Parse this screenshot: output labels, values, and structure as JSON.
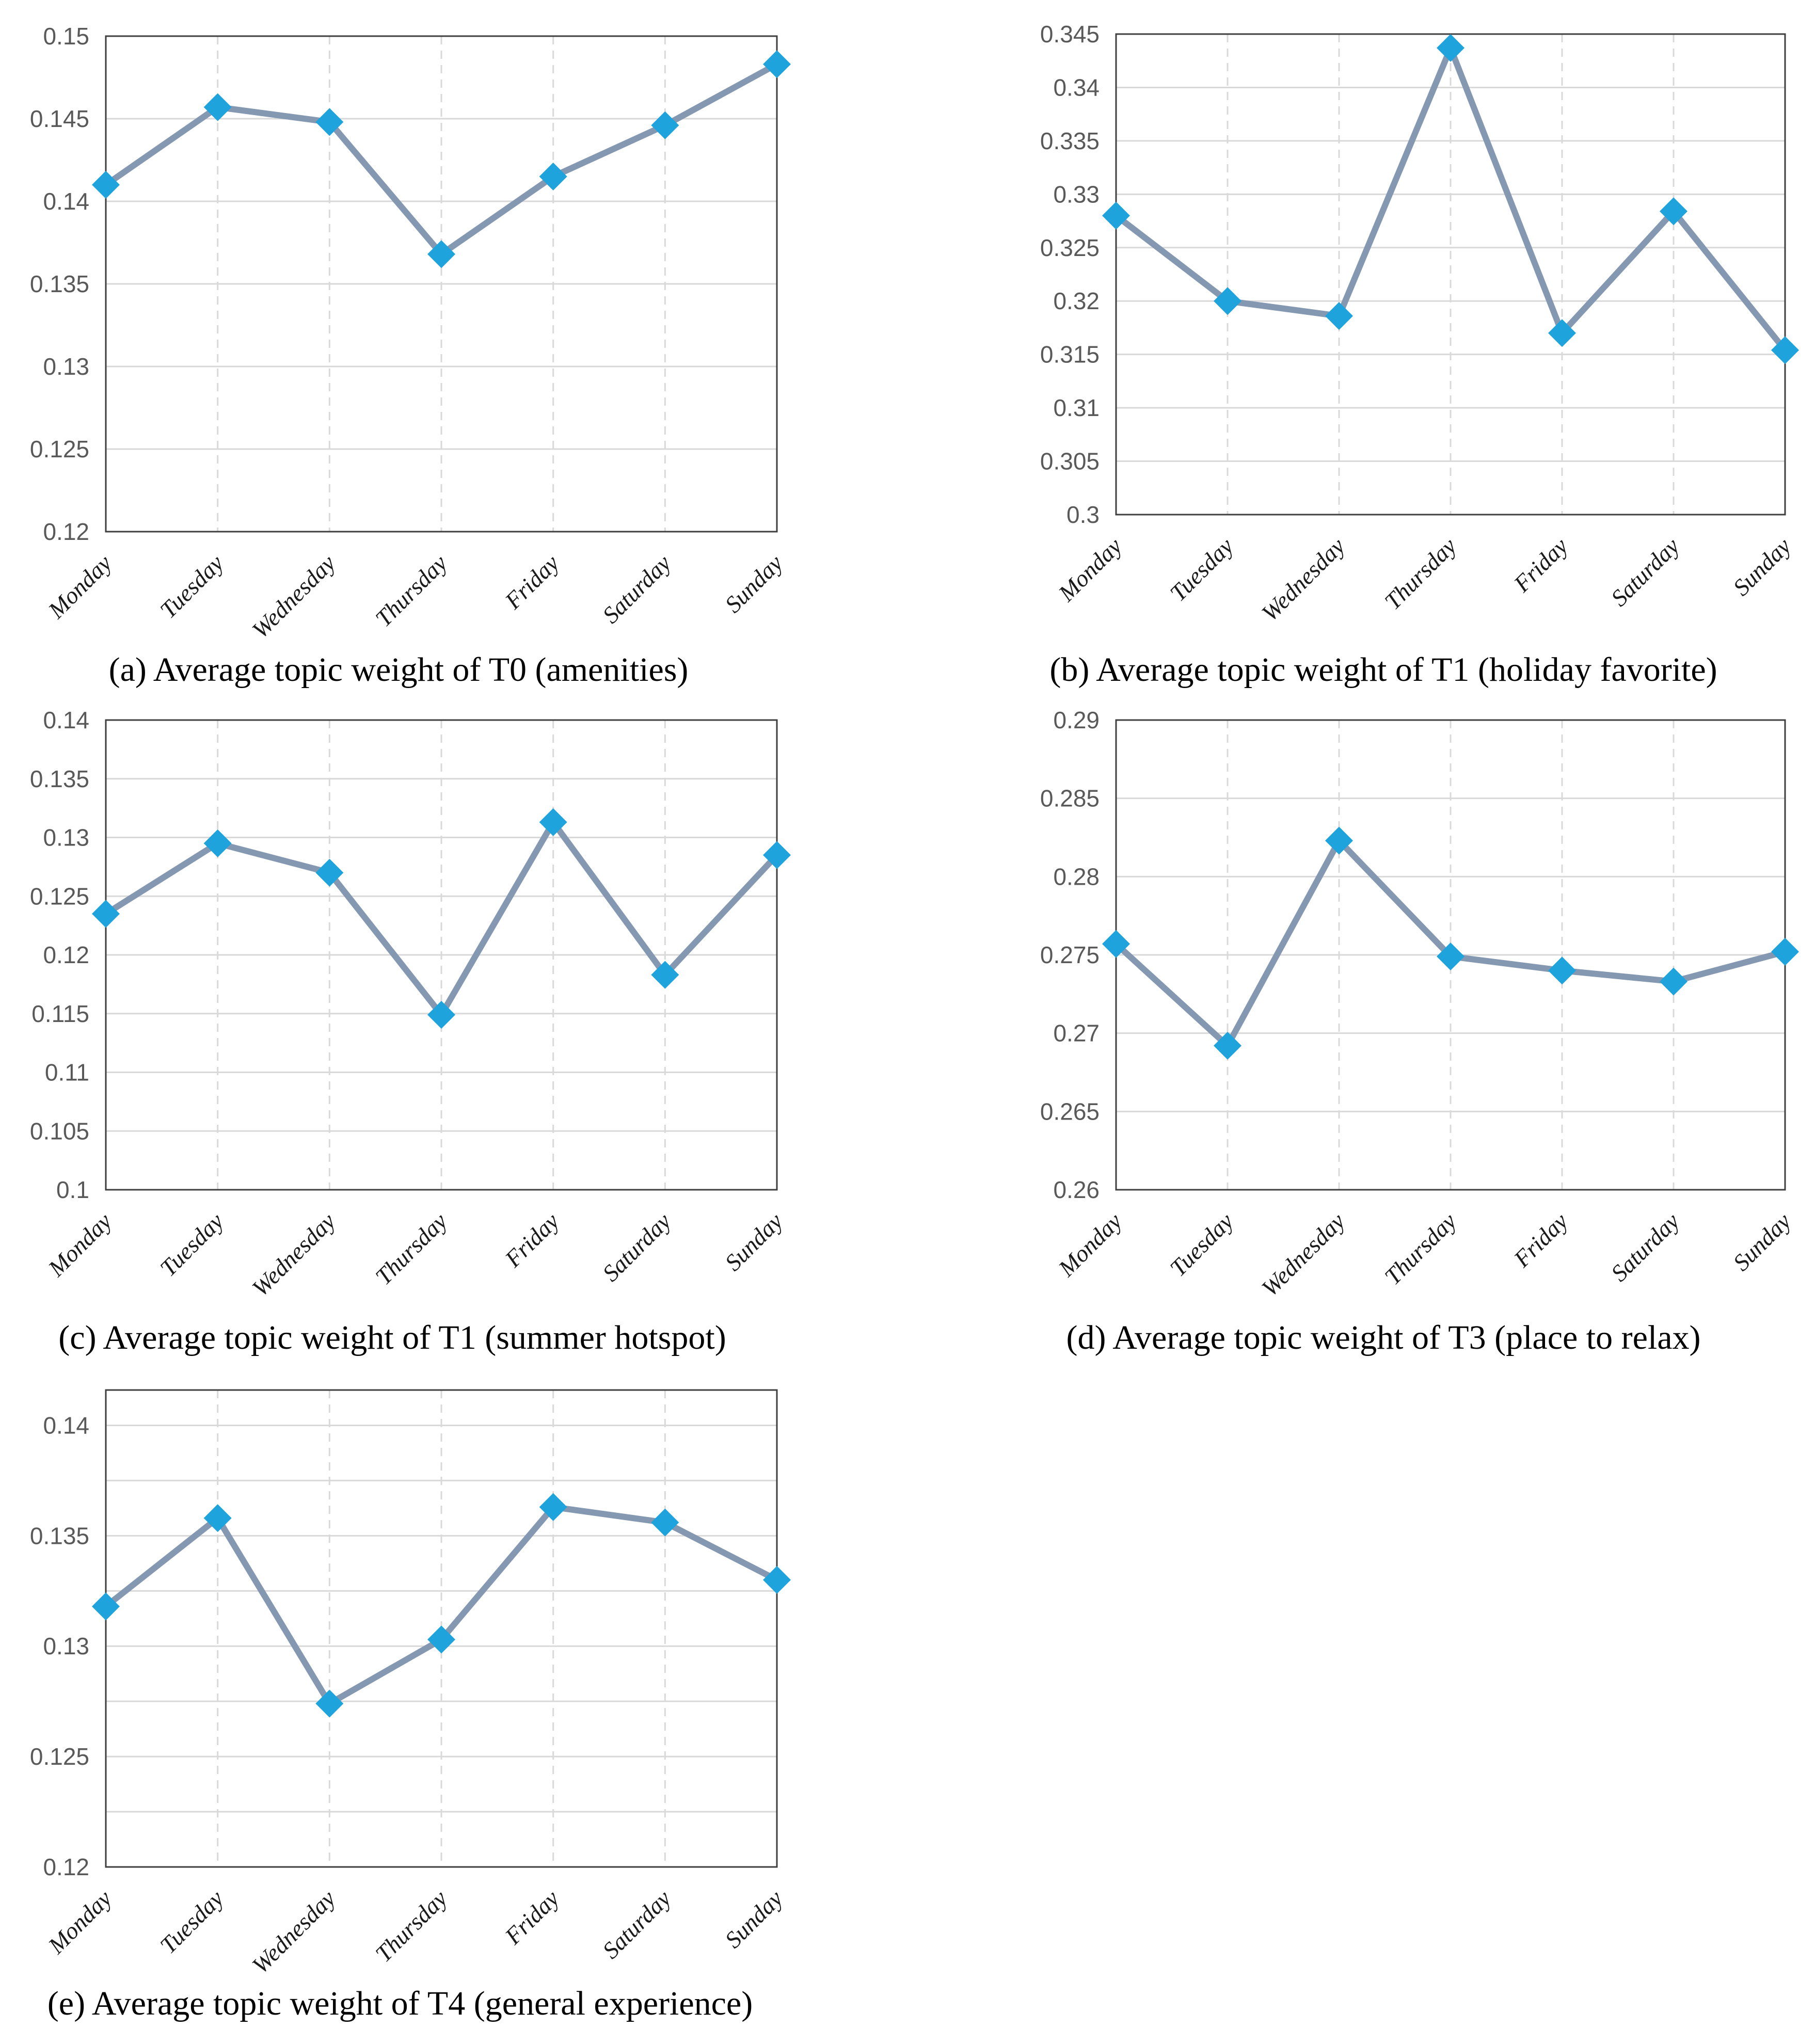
{
  "figure": {
    "background": "#ffffff",
    "caption_color": "#000000",
    "ytick_label_color": "#595959",
    "day_label_color": "#1a1a1a",
    "line_color": "#8598b1",
    "marker_color": "#1fa3dd",
    "gridline_color": "#d9d9d9",
    "dashed_gridline_color": "#d9d9d9",
    "plot_border_color": "#3f3f3f"
  },
  "categories": [
    "Monday",
    "Tuesday",
    "Wednesday",
    "Thursday",
    "Friday",
    "Saturday",
    "Sunday"
  ],
  "chart_data": [
    {
      "type": "line",
      "id": "a",
      "caption": "(a) Average topic weight of T0 (amenities)",
      "topic": "T0 (amenities)",
      "categories": [
        "Monday",
        "Tuesday",
        "Wednesday",
        "Thursday",
        "Friday",
        "Saturday",
        "Sunday"
      ],
      "values": [
        0.141,
        0.1457,
        0.1448,
        0.1368,
        0.1415,
        0.1446,
        0.1483
      ],
      "ylim": [
        0.12,
        0.15
      ],
      "grid_step": 0.005,
      "yticks": [
        "0.12",
        "0.125",
        "0.13",
        "0.135",
        "0.14",
        "0.145",
        "0.15"
      ],
      "xlabel": "",
      "ylabel": "",
      "legend": false,
      "grid": true,
      "marker": "diamond"
    },
    {
      "type": "line",
      "id": "b",
      "caption": "(b) Average topic weight of T1 (holiday favorite)",
      "topic": "T1 (holiday favorite)",
      "categories": [
        "Monday",
        "Tuesday",
        "Wednesday",
        "Thursday",
        "Friday",
        "Saturday",
        "Sunday"
      ],
      "values": [
        0.328,
        0.32,
        0.3186,
        0.3437,
        0.317,
        0.3284,
        0.3154
      ],
      "ylim": [
        0.3,
        0.345
      ],
      "grid_step": 0.005,
      "yticks": [
        "0.3",
        "0.305",
        "0.31",
        "0.315",
        "0.32",
        "0.325",
        "0.33",
        "0.335",
        "0.34",
        "0.345"
      ],
      "xlabel": "",
      "ylabel": "",
      "legend": false,
      "grid": true,
      "marker": "diamond"
    },
    {
      "type": "line",
      "id": "c",
      "caption": "(c) Average topic weight of T1 (summer hotspot)",
      "topic": "T1 (summer hotspot)",
      "categories": [
        "Monday",
        "Tuesday",
        "Wednesday",
        "Thursday",
        "Friday",
        "Saturday",
        "Sunday"
      ],
      "values": [
        0.1235,
        0.1295,
        0.127,
        0.1149,
        0.1313,
        0.1183,
        0.1285
      ],
      "ylim": [
        0.1,
        0.14
      ],
      "grid_step": 0.005,
      "yticks": [
        "0.1",
        "0.105",
        "0.11",
        "0.115",
        "0.12",
        "0.125",
        "0.13",
        "0.135",
        "0.14"
      ],
      "xlabel": "",
      "ylabel": "",
      "legend": false,
      "grid": true,
      "marker": "diamond"
    },
    {
      "type": "line",
      "id": "d",
      "caption": "(d) Average topic weight of T3 (place to relax)",
      "topic": "T3 (place to relax)",
      "categories": [
        "Monday",
        "Tuesday",
        "Wednesday",
        "Thursday",
        "Friday",
        "Saturday",
        "Sunday"
      ],
      "values": [
        0.2757,
        0.2692,
        0.2823,
        0.2749,
        0.274,
        0.2733,
        0.2752
      ],
      "ylim": [
        0.26,
        0.29
      ],
      "grid_step": 0.005,
      "yticks": [
        "0.26",
        "0.265",
        "0.27",
        "0.275",
        "0.28",
        "0.285",
        "0.29"
      ],
      "xlabel": "",
      "ylabel": "",
      "legend": false,
      "grid": true,
      "marker": "diamond"
    },
    {
      "type": "line",
      "id": "e",
      "caption": "(e) Average topic weight of T4 (general experience)",
      "topic": "T4 (general experience)",
      "categories": [
        "Monday",
        "Tuesday",
        "Wednesday",
        "Thursday",
        "Friday",
        "Saturday",
        "Sunday"
      ],
      "values": [
        0.1318,
        0.1358,
        0.1274,
        0.1303,
        0.1363,
        0.1356,
        0.133
      ],
      "ylim": [
        0.12,
        0.1416
      ],
      "grid_step": 0.0025,
      "yticks": [
        "0.12",
        "0.125",
        "0.13",
        "0.135",
        "0.14"
      ],
      "xlabel": "",
      "ylabel": "",
      "legend": false,
      "grid": true,
      "marker": "diamond"
    }
  ]
}
